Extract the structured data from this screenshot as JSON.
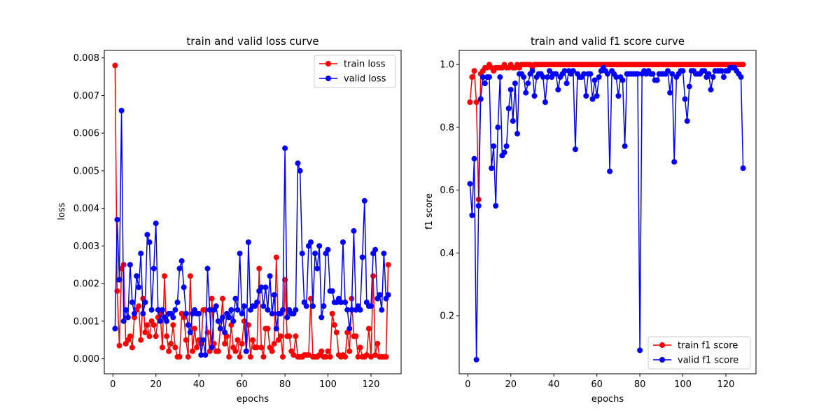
{
  "colors": {
    "train": "#ff0000",
    "valid": "#0000ff"
  },
  "chart_data": [
    {
      "type": "line",
      "title": "train and valid loss curve",
      "xlabel": "epochs",
      "ylabel": "loss",
      "xlim": [
        -4,
        134
      ],
      "ylim": [
        -0.0004,
        0.0082
      ],
      "xticks": [
        0,
        20,
        40,
        60,
        80,
        100,
        120
      ],
      "xtick_labels": [
        "0",
        "20",
        "40",
        "60",
        "80",
        "100",
        "120"
      ],
      "yticks": [
        0.0,
        0.001,
        0.002,
        0.003,
        0.004,
        0.005,
        0.006,
        0.007,
        0.008
      ],
      "ytick_labels": [
        "0.000",
        "0.001",
        "0.002",
        "0.003",
        "0.004",
        "0.005",
        "0.006",
        "0.007",
        "0.008"
      ],
      "legend_position": "top-right",
      "grid": false,
      "series": [
        {
          "name": "train loss",
          "color": "#ff0000",
          "x_start": 1,
          "values": [
            0.0078,
            0.0018,
            0.00035,
            0.0024,
            0.0025,
            0.0004,
            0.0005,
            0.0006,
            0.0003,
            0.0011,
            0.0013,
            0.0014,
            0.0005,
            0.0016,
            0.0007,
            0.0009,
            0.0006,
            0.001,
            0.0009,
            0.0006,
            0.0011,
            0.0012,
            0.0003,
            0.0022,
            0.0006,
            0.0002,
            0.0004,
            0.0009,
            0.0003,
            5e-05,
            5e-05,
            0.0012,
            0.0011,
            0.0005,
            5e-05,
            0.0022,
            0.0002,
            0.0008,
            0.0003,
            0.0005,
            0.0004,
            0.0013,
            0.0013,
            0.0007,
            0.0002,
            0.0016,
            0.0004,
            0.0002,
            0.0002,
            0.0008,
            0.0016,
            0.0004,
            0.0006,
            5e-05,
            0.0009,
            0.0003,
            0.0002,
            0.0005,
            5e-05,
            0.0004,
            0.001,
            0.0002,
            0.0009,
            5e-05,
            0.0005,
            0.0003,
            0.0003,
            0.0024,
            0.0003,
            5e-05,
            0.0008,
            0.0008,
            0.0003,
            0.0002,
            0.0004,
            0.0027,
            0.0005,
            0.0006,
            5e-05,
            0.0021,
            0.0006,
            0.0006,
            0.0002,
            0.0001,
            0.0006,
            5e-05,
            5e-05,
            5e-05,
            0.0001,
            0.0001,
            0.0001,
            0.0016,
            5e-05,
            5e-05,
            5e-05,
            0.0001,
            0.0002,
            5e-05,
            5e-05,
            0.0002,
            5e-05,
            0.0012,
            0.0009,
            0.0007,
            0.0001,
            5e-05,
            0.0001,
            5e-05,
            0.0007,
            0.0002,
            0.0016,
            0.0006,
            0.0006,
            5e-05,
            0.0003,
            5e-05,
            5e-05,
            0.0001,
            0.0008,
            5e-05,
            0.0022,
            0.0001,
            0.0004,
            5e-05,
            5e-05,
            5e-05,
            5e-05,
            0.0025
          ]
        },
        {
          "name": "valid loss",
          "color": "#0000ff",
          "x_start": 1,
          "values": [
            0.0008,
            0.0037,
            0.0021,
            0.0066,
            0.001,
            0.0013,
            0.0011,
            0.0025,
            0.0015,
            0.0012,
            0.0022,
            0.0019,
            0.0028,
            0.0012,
            0.0015,
            0.0033,
            0.0031,
            0.0013,
            0.0024,
            0.0036,
            0.0013,
            0.001,
            0.0013,
            0.0011,
            0.001,
            0.0012,
            0.0012,
            0.0011,
            0.0013,
            0.0015,
            0.0024,
            0.0026,
            0.0019,
            0.0012,
            0.0009,
            0.0007,
            0.0012,
            0.0013,
            0.0012,
            0.0012,
            0.0001,
            0.0005,
            0.0001,
            0.0024,
            0.0013,
            0.0003,
            0.0013,
            0.0014,
            0.001,
            0.0008,
            0.0011,
            0.0007,
            0.0012,
            0.0011,
            0.0013,
            0.001,
            0.0016,
            0.0013,
            0.0028,
            0.0012,
            0.0014,
            0.0002,
            0.0031,
            0.0013,
            0.0014,
            0.0014,
            0.0015,
            0.0018,
            0.0019,
            0.0014,
            0.0019,
            0.0013,
            0.0022,
            0.0012,
            0.0017,
            0.0008,
            0.0012,
            0.0012,
            0.0013,
            0.0056,
            0.0011,
            0.0013,
            0.0012,
            0.0012,
            0.0013,
            0.0052,
            0.005,
            0.0028,
            0.0015,
            0.0014,
            0.003,
            0.0031,
            0.0014,
            0.0028,
            0.0024,
            0.003,
            0.0011,
            0.0014,
            0.0028,
            0.0029,
            0.0018,
            0.0018,
            0.0015,
            0.0015,
            0.0016,
            0.0015,
            0.0031,
            0.0015,
            0.0013,
            0.0008,
            0.0013,
            0.0034,
            0.0013,
            0.0014,
            0.0013,
            0.0027,
            0.0042,
            0.0015,
            0.0014,
            0.0014,
            0.0028,
            0.0029,
            0.0016,
            0.0017,
            0.0013,
            0.0028,
            0.0016,
            0.0017
          ]
        }
      ]
    },
    {
      "type": "line",
      "title": "train and valid f1 score curve",
      "xlabel": "epochs",
      "ylabel": "f1 score",
      "xlim": [
        -4,
        134
      ],
      "ylim": [
        0.015,
        1.045
      ],
      "xticks": [
        0,
        20,
        40,
        60,
        80,
        100,
        120
      ],
      "xtick_labels": [
        "0",
        "20",
        "40",
        "60",
        "80",
        "100",
        "120"
      ],
      "yticks": [
        0.2,
        0.4,
        0.6,
        0.8,
        1.0
      ],
      "ytick_labels": [
        "0.2",
        "0.4",
        "0.6",
        "0.8",
        "1.0"
      ],
      "legend_position": "bottom-right",
      "grid": false,
      "series": [
        {
          "name": "train f1 score",
          "color": "#ff0000",
          "x_start": 1,
          "values": [
            0.88,
            0.96,
            0.98,
            0.88,
            0.57,
            0.97,
            0.98,
            0.99,
            0.99,
            1.0,
            0.99,
            0.98,
            0.99,
            0.99,
            0.99,
            0.99,
            1.0,
            0.99,
            0.99,
            1.0,
            0.99,
            0.99,
            1.0,
            0.99,
            1.0,
            1.0,
            1.0,
            1.0,
            1.0,
            0.99,
            1.0,
            1.0,
            1.0,
            1.0,
            1.0,
            1.0,
            1.0,
            1.0,
            1.0,
            1.0,
            1.0,
            1.0,
            1.0,
            1.0,
            1.0,
            1.0,
            1.0,
            1.0,
            1.0,
            1.0,
            1.0,
            1.0,
            1.0,
            1.0,
            1.0,
            1.0,
            1.0,
            1.0,
            1.0,
            1.0,
            1.0,
            1.0,
            1.0,
            1.0,
            1.0,
            1.0,
            1.0,
            1.0,
            1.0,
            1.0,
            1.0,
            1.0,
            1.0,
            1.0,
            1.0,
            1.0,
            1.0,
            1.0,
            1.0,
            1.0,
            1.0,
            1.0,
            1.0,
            1.0,
            1.0,
            1.0,
            1.0,
            1.0,
            1.0,
            1.0,
            1.0,
            1.0,
            1.0,
            1.0,
            1.0,
            1.0,
            1.0,
            1.0,
            1.0,
            1.0,
            1.0,
            1.0,
            1.0,
            1.0,
            1.0,
            1.0,
            1.0,
            1.0,
            1.0,
            1.0,
            1.0,
            1.0,
            1.0,
            1.0,
            1.0,
            1.0,
            1.0,
            1.0,
            1.0,
            1.0,
            1.0,
            1.0,
            1.0,
            1.0,
            1.0,
            1.0,
            1.0,
            1.0
          ]
        },
        {
          "name": "valid f1 score",
          "color": "#0000ff",
          "x_start": 1,
          "values": [
            0.62,
            0.52,
            0.7,
            0.06,
            0.55,
            0.89,
            0.96,
            0.94,
            0.96,
            0.96,
            0.67,
            0.74,
            0.55,
            0.8,
            0.96,
            0.71,
            0.72,
            0.74,
            0.86,
            0.92,
            0.82,
            0.94,
            0.78,
            0.97,
            0.97,
            0.96,
            0.91,
            0.94,
            0.97,
            0.98,
            0.9,
            0.96,
            0.97,
            0.97,
            0.96,
            0.88,
            0.96,
            0.98,
            0.96,
            0.97,
            0.97,
            0.92,
            0.96,
            0.97,
            0.98,
            0.94,
            0.98,
            0.97,
            0.98,
            0.73,
            0.97,
            0.96,
            0.96,
            0.97,
            0.9,
            0.97,
            0.97,
            0.89,
            0.95,
            0.9,
            0.96,
            0.98,
            0.99,
            0.98,
            0.97,
            0.66,
            0.98,
            0.97,
            0.96,
            0.9,
            0.96,
            0.95,
            0.74,
            0.97,
            0.97,
            0.97,
            0.97,
            0.97,
            0.97,
            0.09,
            0.97,
            0.98,
            0.97,
            0.98,
            0.97,
            0.97,
            0.95,
            0.95,
            0.97,
            0.97,
            0.97,
            0.97,
            0.98,
            0.91,
            0.97,
            0.69,
            0.96,
            0.97,
            0.98,
            0.98,
            0.89,
            0.82,
            0.93,
            0.98,
            0.98,
            0.97,
            0.97,
            0.97,
            0.98,
            0.98,
            0.96,
            0.97,
            0.92,
            0.96,
            0.98,
            0.98,
            0.98,
            0.98,
            0.96,
            0.98,
            0.98,
            0.99,
            0.99,
            0.99,
            0.98,
            0.97,
            0.96,
            0.67
          ]
        }
      ]
    }
  ]
}
